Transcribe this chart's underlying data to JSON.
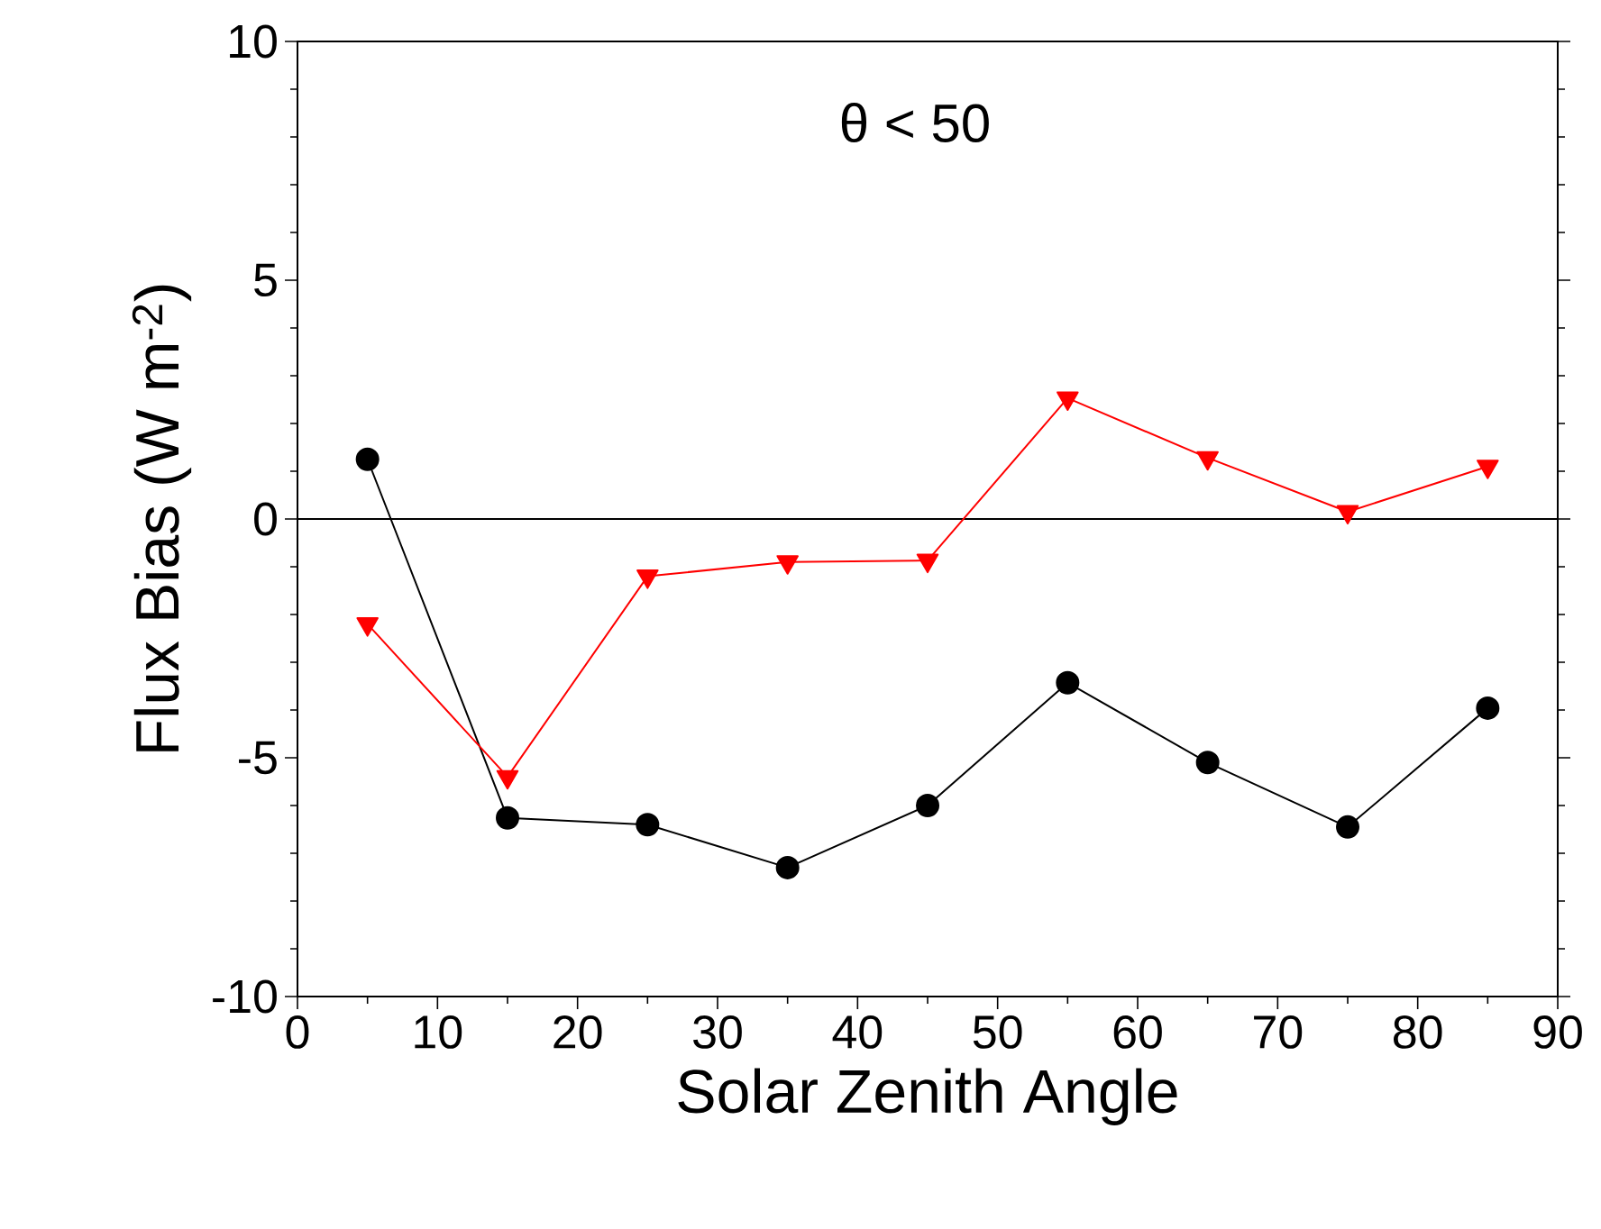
{
  "chart_data": {
    "type": "line",
    "x": [
      5,
      15,
      25,
      35,
      45,
      55,
      65,
      75,
      85
    ],
    "series": [
      {
        "color": "#000000",
        "marker": "circle",
        "values": [
          1.25,
          -6.26,
          -6.4,
          -7.3,
          -6.0,
          -3.43,
          -5.1,
          -6.45,
          -3.96
        ]
      },
      {
        "color": "#ff0000",
        "marker": "triangle",
        "values": [
          -2.2,
          -5.4,
          -1.2,
          -0.9,
          -0.87,
          2.53,
          1.28,
          0.15,
          1.1
        ]
      }
    ],
    "xlabel": "Solar Zenith Angle",
    "ylabel": "Flux Bias (W m$^{-2}$)",
    "annotations": [
      "θ < 50"
    ],
    "xlim": [
      0,
      90
    ],
    "ylim": [
      -10,
      10
    ],
    "xticks": [
      0,
      10,
      20,
      30,
      40,
      50,
      60,
      70,
      80,
      90
    ],
    "yticks": [
      10,
      5,
      0,
      -5,
      -10
    ],
    "ref_lines": [
      {
        "axis": "y",
        "value": 0,
        "color": "#000000"
      }
    ],
    "grid": false,
    "line_style": "solid"
  }
}
